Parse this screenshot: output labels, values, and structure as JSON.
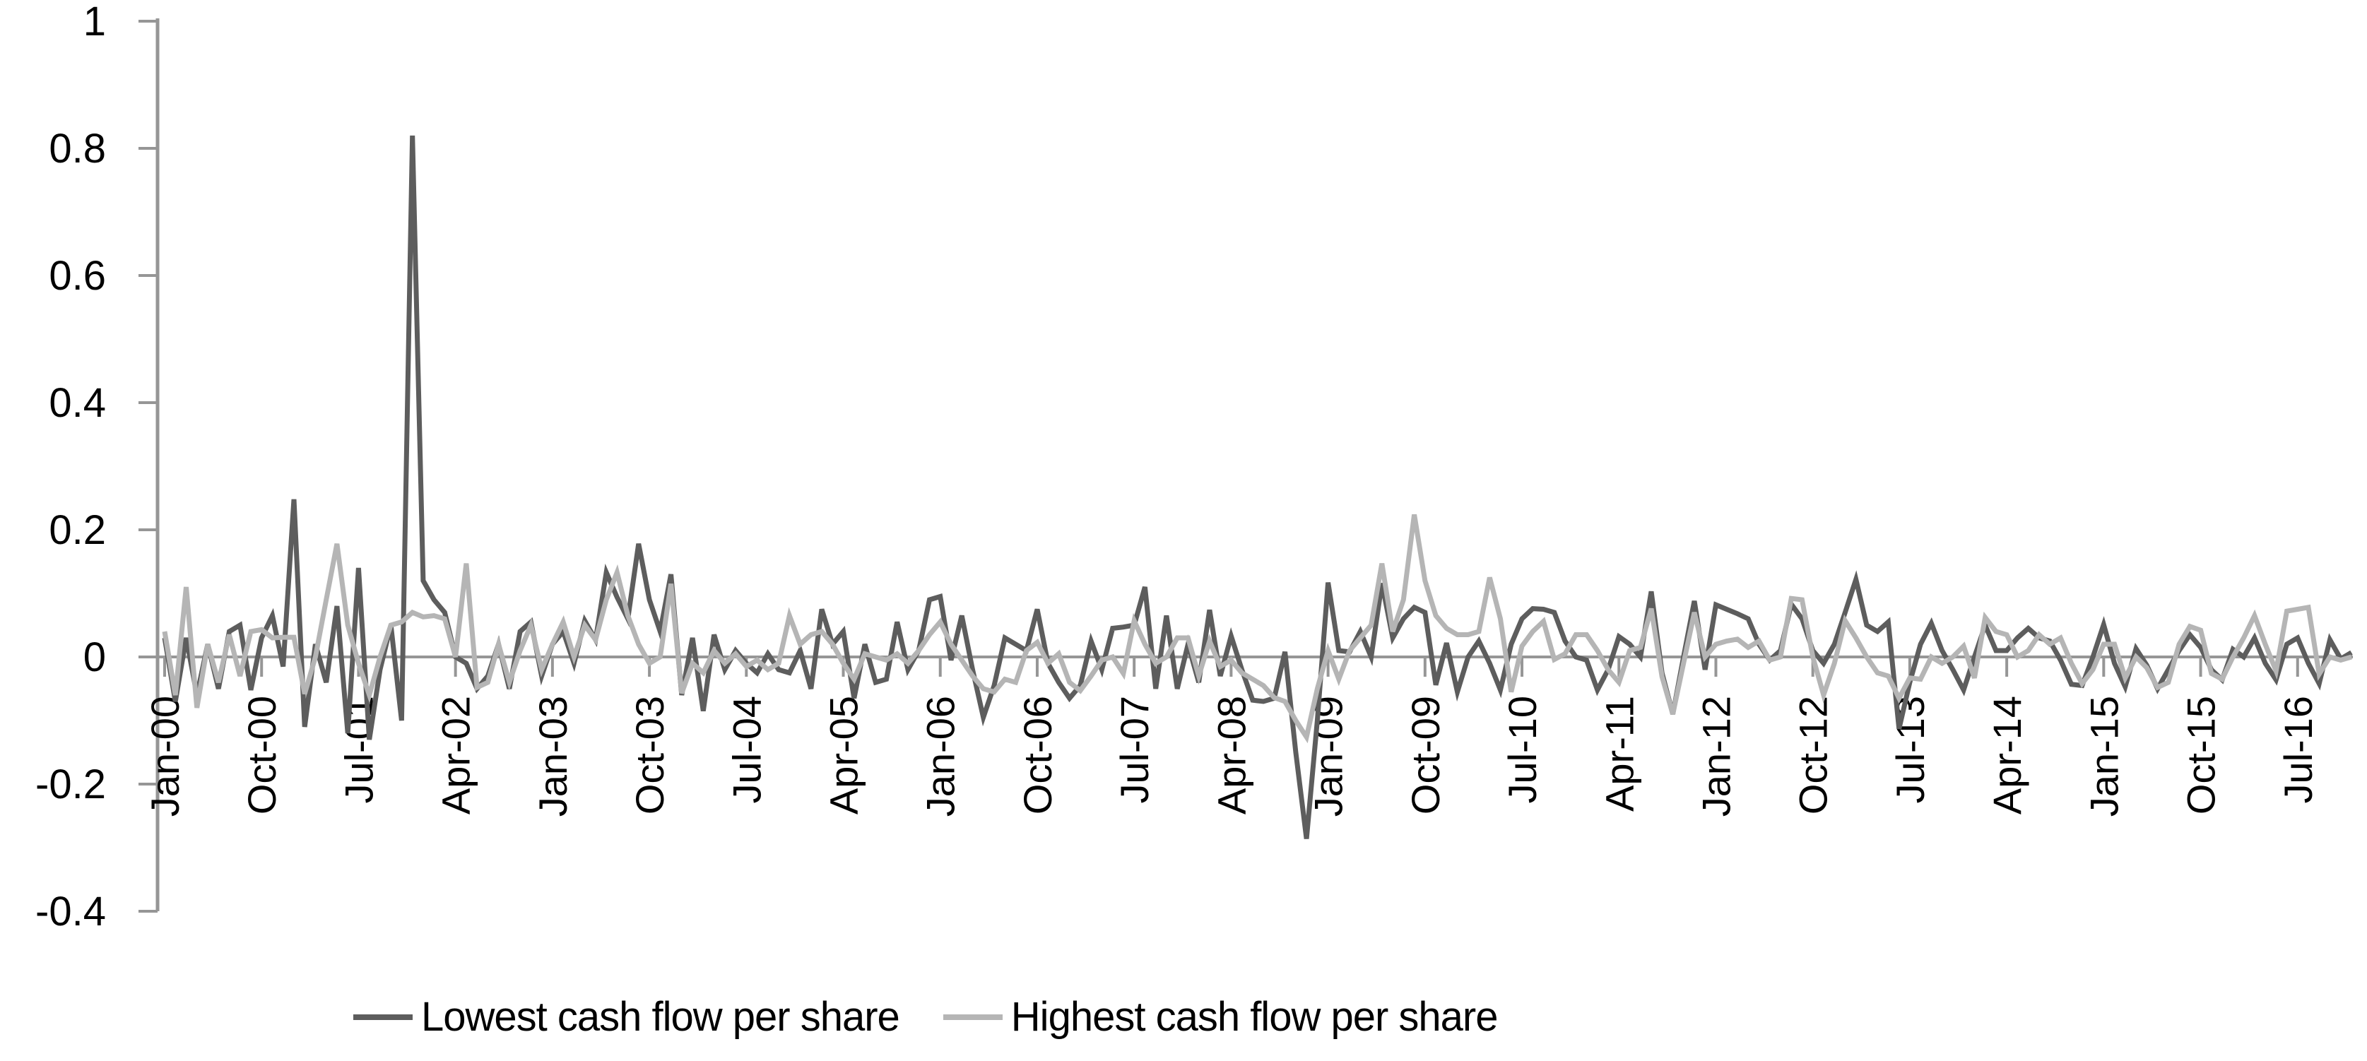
{
  "page": {
    "background": "#FFFFFF"
  },
  "chart_data": {
    "type": "line",
    "title": "",
    "xlabel": "",
    "ylabel": "",
    "grid": "off",
    "legend_position": "bottom",
    "ylim": [
      -0.4,
      1
    ],
    "y_tick_values": [
      1,
      0.8,
      0.6,
      0.4,
      0.2,
      0,
      -0.2,
      -0.4
    ],
    "y_tick_labels": [
      "1",
      "0.8",
      "0.6",
      "0.4",
      "0.2",
      "0",
      "-0.2",
      "-0.4"
    ],
    "x_range": {
      "start": "Jan-00",
      "end": "Dec-16",
      "freq": "monthly",
      "n_points": 204
    },
    "x_tick_interval_months": 9,
    "x_tick_labels": [
      "Jan-00",
      "Oct-00",
      "Jul-01",
      "Apr-02",
      "Jan-03",
      "Oct-03",
      "Jul-04",
      "Apr-05",
      "Jan-06",
      "Oct-06",
      "Jul-07",
      "Apr-08",
      "Jan-09",
      "Oct-09",
      "Jul-10",
      "Apr-11",
      "Jan-12",
      "Oct-12",
      "Jul-13",
      "Apr-14",
      "Jan-15",
      "Oct-15",
      "Jul-16"
    ],
    "axis_color": "#969696",
    "text_color": "#000000",
    "zero_line": true,
    "series": [
      {
        "name": "Lowest cash flow per share",
        "color": "#5D5D5D",
        "values": [
          0.03,
          -0.07,
          0.03,
          -0.06,
          0.02,
          -0.05,
          0.04,
          0.05,
          -0.052,
          0.03,
          0.065,
          -0.015,
          0.248,
          -0.11,
          0.02,
          -0.04,
          0.08,
          -0.12,
          0.14,
          -0.13,
          -0.02,
          0.05,
          -0.1,
          0.82,
          0.12,
          0.09,
          0.07,
          0.0,
          -0.01,
          -0.05,
          -0.03,
          0.02,
          -0.05,
          0.04,
          0.055,
          -0.03,
          0.02,
          0.04,
          -0.01,
          0.057,
          0.027,
          0.133,
          0.094,
          0.06,
          0.178,
          0.09,
          0.04,
          0.13,
          -0.06,
          0.03,
          -0.085,
          0.035,
          -0.02,
          0.01,
          -0.01,
          -0.025,
          0.005,
          -0.02,
          -0.025,
          0.01,
          -0.05,
          0.075,
          0.02,
          0.04,
          -0.065,
          0.02,
          -0.04,
          -0.035,
          0.055,
          -0.02,
          0.01,
          0.09,
          0.095,
          -0.005,
          0.065,
          -0.02,
          -0.095,
          -0.045,
          0.03,
          0.02,
          0.01,
          0.075,
          -0.01,
          -0.04,
          -0.065,
          -0.045,
          0.025,
          -0.02,
          0.045,
          0.047,
          0.05,
          0.11,
          -0.05,
          0.065,
          -0.05,
          0.02,
          -0.04,
          0.074,
          -0.03,
          0.033,
          -0.02,
          -0.068,
          -0.07,
          -0.065,
          0.008,
          -0.15,
          -0.286,
          -0.1,
          0.117,
          0.01,
          0.008,
          0.04,
          0.0,
          0.116,
          0.03,
          0.06,
          0.078,
          0.07,
          -0.044,
          0.022,
          -0.055,
          0.0,
          0.025,
          -0.01,
          -0.052,
          0.02,
          0.06,
          0.076,
          0.075,
          0.07,
          0.025,
          0.0,
          -0.005,
          -0.052,
          -0.02,
          0.032,
          0.02,
          0.0,
          0.103,
          -0.025,
          -0.09,
          0.0,
          0.088,
          -0.02,
          0.082,
          0.075,
          0.068,
          0.06,
          0.02,
          -0.005,
          0.01,
          0.083,
          0.06,
          0.01,
          -0.01,
          0.02,
          0.07,
          0.122,
          0.05,
          0.04,
          0.055,
          -0.113,
          -0.04,
          0.02,
          0.053,
          0.01,
          -0.02,
          -0.052,
          0.0,
          0.05,
          0.01,
          0.01,
          0.03,
          0.045,
          0.03,
          0.025,
          -0.005,
          -0.043,
          -0.045,
          0.0,
          0.051,
          -0.01,
          -0.047,
          0.013,
          -0.013,
          -0.05,
          -0.02,
          0.01,
          0.035,
          0.015,
          -0.02,
          -0.036,
          0.012,
          0.0,
          0.03,
          -0.01,
          -0.036,
          0.02,
          0.03,
          -0.01,
          -0.042,
          0.027,
          -0.003,
          0.007
        ]
      },
      {
        "name": "Highest cash flow per share",
        "color": "#B5B5B5",
        "values": [
          0.04,
          -0.06,
          0.11,
          -0.08,
          0.02,
          -0.04,
          0.035,
          -0.03,
          0.04,
          0.043,
          0.03,
          0.031,
          0.031,
          -0.058,
          0.0,
          0.09,
          0.178,
          0.05,
          -0.01,
          -0.06,
          0.0,
          0.05,
          0.055,
          0.07,
          0.063,
          0.065,
          0.06,
          0.0,
          0.147,
          -0.048,
          -0.04,
          0.02,
          -0.04,
          0.01,
          0.05,
          -0.02,
          0.02,
          0.055,
          0.0,
          0.05,
          0.027,
          0.09,
          0.133,
          0.065,
          0.02,
          -0.01,
          0.0,
          0.115,
          -0.057,
          -0.01,
          -0.025,
          0.01,
          -0.01,
          0.005,
          -0.015,
          -0.005,
          -0.02,
          -0.01,
          0.065,
          0.02,
          0.035,
          0.04,
          0.02,
          -0.01,
          -0.035,
          0.005,
          0.0,
          -0.005,
          0.005,
          -0.01,
          0.01,
          0.035,
          0.055,
          0.02,
          -0.005,
          -0.03,
          -0.05,
          -0.055,
          -0.035,
          -0.04,
          0.01,
          0.023,
          -0.01,
          0.005,
          -0.04,
          -0.053,
          -0.03,
          -0.005,
          0.0,
          -0.026,
          0.057,
          0.02,
          -0.01,
          0.0,
          0.03,
          0.03,
          -0.03,
          0.025,
          -0.015,
          -0.005,
          -0.025,
          -0.035,
          -0.045,
          -0.064,
          -0.07,
          -0.1,
          -0.126,
          -0.05,
          0.01,
          -0.035,
          0.01,
          0.03,
          0.05,
          0.147,
          0.04,
          0.09,
          0.224,
          0.12,
          0.065,
          0.045,
          0.035,
          0.035,
          0.04,
          0.125,
          0.06,
          -0.055,
          0.017,
          0.04,
          0.056,
          -0.004,
          0.005,
          0.035,
          0.035,
          0.01,
          -0.02,
          -0.04,
          0.01,
          0.015,
          0.076,
          -0.031,
          -0.09,
          -0.01,
          0.07,
          0.0,
          0.02,
          0.025,
          0.028,
          0.015,
          0.025,
          -0.005,
          0.0,
          0.092,
          0.09,
          0.0,
          -0.06,
          -0.01,
          0.057,
          0.03,
          0.0,
          -0.025,
          -0.03,
          -0.065,
          -0.033,
          -0.035,
          0.0,
          -0.01,
          0.0,
          0.017,
          -0.033,
          0.062,
          0.04,
          0.035,
          0.0,
          0.01,
          0.035,
          0.02,
          0.03,
          -0.01,
          -0.042,
          -0.02,
          0.02,
          0.02,
          -0.033,
          0.0,
          -0.017,
          -0.048,
          -0.04,
          0.02,
          0.048,
          0.042,
          -0.026,
          -0.035,
          0.0,
          0.03,
          0.065,
          0.02,
          -0.022,
          0.072,
          0.075,
          0.078,
          -0.027,
          0.0,
          -0.005,
          0.0
        ]
      }
    ]
  },
  "legend": {
    "items": [
      {
        "label": "Lowest cash flow per share",
        "color": "#5D5D5D"
      },
      {
        "label": "Highest cash flow per share",
        "color": "#B5B5B5"
      }
    ]
  }
}
